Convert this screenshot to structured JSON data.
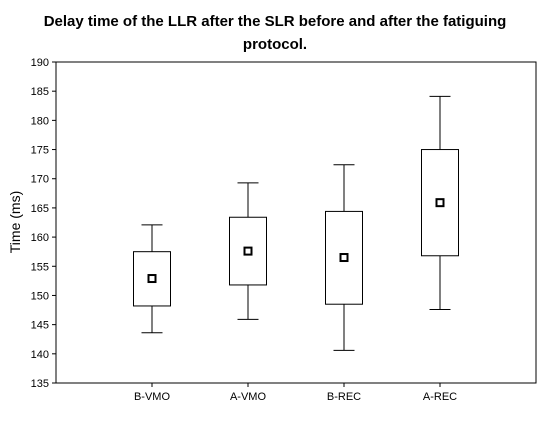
{
  "chart_data": {
    "type": "boxplot",
    "title_line1": "Delay time of the LLR after the SLR before and after the fatiguing",
    "title_line2": "protocol.",
    "xlabel": "",
    "ylabel": "Time (ms)",
    "ylim": [
      135,
      190
    ],
    "yticks": [
      135,
      140,
      145,
      150,
      155,
      160,
      165,
      170,
      175,
      180,
      185,
      190
    ],
    "grid": false,
    "categories": [
      "B-VMO",
      "A-VMO",
      "B-REC",
      "A-REC"
    ],
    "boxes": [
      {
        "category": "B-VMO",
        "whisker_low": 143.6,
        "q1": 148.2,
        "mean": 152.9,
        "q3": 157.5,
        "whisker_high": 162.1
      },
      {
        "category": "A-VMO",
        "whisker_low": 145.9,
        "q1": 151.8,
        "mean": 157.6,
        "q3": 163.4,
        "whisker_high": 169.3
      },
      {
        "category": "B-REC",
        "whisker_low": 140.6,
        "q1": 148.5,
        "mean": 156.5,
        "q3": 164.4,
        "whisker_high": 172.4
      },
      {
        "category": "A-REC",
        "whisker_low": 147.6,
        "q1": 156.8,
        "mean": 165.9,
        "q3": 175.0,
        "whisker_high": 184.1
      }
    ]
  }
}
